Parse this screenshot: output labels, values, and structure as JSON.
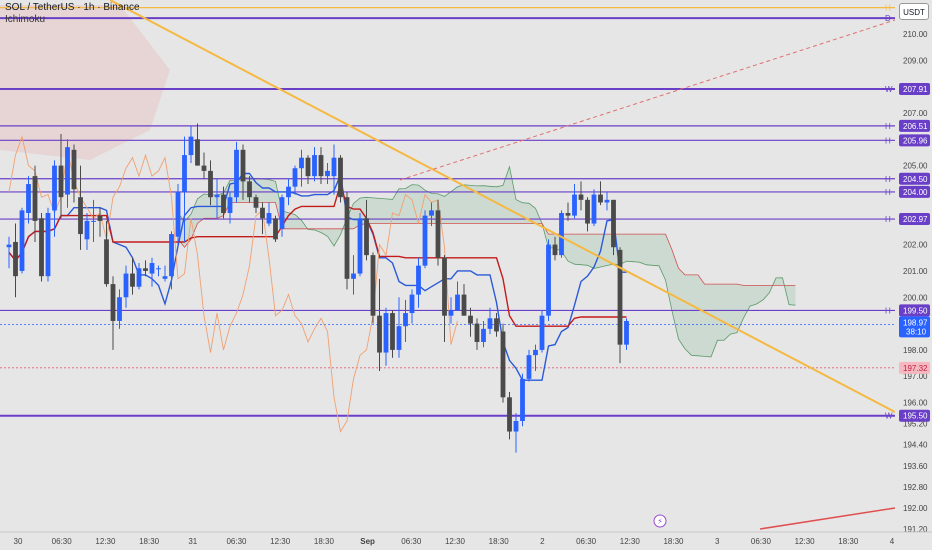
{
  "header": {
    "symbol_line": "SOL / TetherUS · 1h · Binance",
    "indicator_label": "Ichimoku",
    "currency_button": "USDT"
  },
  "colors": {
    "background": "#e6e6e6",
    "bull_candle": "#2962ff",
    "bear_candle": "#4a4a4a",
    "level_line": "#6a3fc8",
    "trendline": "#f5b942",
    "conversion_line": "#2a5ad8",
    "base_line": "#c41b1b",
    "lagging_line": "#f0a070",
    "cloud_bull": "#b8cfc0",
    "cloud_bear": "#e8c4c4",
    "current_price_tag": "#2962ff",
    "red_tag": "#f5b8c0"
  },
  "chart_data": {
    "type": "candlestick",
    "title": "SOL / TetherUS · 1h · Binance",
    "ylim": [
      190.85,
      211.1
    ],
    "x_ticks": [
      "30",
      "06:30",
      "12:30",
      "18:30",
      "31",
      "06:30",
      "12:30",
      "18:30",
      "Sep",
      "06:30",
      "12:30",
      "18:30",
      "2",
      "06:30",
      "12:30",
      "18:30",
      "3",
      "06:30",
      "12:30",
      "18:30",
      "4"
    ],
    "y_ticks": [
      "210.00",
      "209.00",
      "207.00",
      "205.00",
      "202.00",
      "201.00",
      "200.00",
      "198.00",
      "197.00",
      "196.00",
      "195.20",
      "194.40",
      "193.60",
      "192.80",
      "192.00",
      "191.20"
    ],
    "levels": [
      {
        "tag": "H",
        "value": 211.0,
        "color": "#f5b942"
      },
      {
        "tag": "D",
        "value": 210.6,
        "color": "#6a3fc8"
      },
      {
        "tag": "W",
        "value": 207.91,
        "label": "207.91",
        "color": "#6a3fc8"
      },
      {
        "tag": "H",
        "value": 206.51,
        "label": "206.51",
        "color": "#6a3fc8"
      },
      {
        "tag": "H",
        "value": 205.96,
        "label": "205.96",
        "color": "#6a3fc8"
      },
      {
        "tag": "H",
        "value": 204.5,
        "label": "204.50",
        "color": "#6a3fc8"
      },
      {
        "tag": "H",
        "value": 204.0,
        "label": "204.00",
        "color": "#6a3fc8"
      },
      {
        "tag": "H",
        "value": 202.97,
        "label": "202.97",
        "color": "#6a3fc8"
      },
      {
        "tag": "H",
        "value": 199.5,
        "label": "199.50",
        "color": "#6a3fc8"
      },
      {
        "tag": "W",
        "value": 195.5,
        "label": "195.50",
        "color": "#6a3fc8"
      }
    ],
    "current_price": {
      "value": 198.97,
      "label": "198.97",
      "countdown": "38:10"
    },
    "dotted_level": {
      "value": 197.32,
      "label": "197.32"
    },
    "candles": [
      [
        201.9,
        202.3,
        201.1,
        202.0
      ],
      [
        202.1,
        202.8,
        200.0,
        200.8
      ],
      [
        201.0,
        203.4,
        200.9,
        203.3
      ],
      [
        203.2,
        204.6,
        202.8,
        204.3
      ],
      [
        204.6,
        205.0,
        202.1,
        202.9
      ],
      [
        203.0,
        203.2,
        200.6,
        200.8
      ],
      [
        200.8,
        203.4,
        200.6,
        203.2
      ],
      [
        203.3,
        205.2,
        202.3,
        205.0
      ],
      [
        205.0,
        206.2,
        203.0,
        203.8
      ],
      [
        203.9,
        206.0,
        203.4,
        205.7
      ],
      [
        205.6,
        205.8,
        203.6,
        204.1
      ],
      [
        203.8,
        205.0,
        201.8,
        202.4
      ],
      [
        202.2,
        203.2,
        201.8,
        202.9
      ],
      [
        202.9,
        203.7,
        202.1,
        202.9
      ],
      [
        203.1,
        203.4,
        202.3,
        202.9
      ],
      [
        202.2,
        202.9,
        200.4,
        200.5
      ],
      [
        200.5,
        200.8,
        198.0,
        199.1
      ],
      [
        199.1,
        200.3,
        198.8,
        200.0
      ],
      [
        200.0,
        201.2,
        199.6,
        200.9
      ],
      [
        200.9,
        201.5,
        200.1,
        200.4
      ],
      [
        200.4,
        201.3,
        200.3,
        201.1
      ],
      [
        201.1,
        201.4,
        200.8,
        201.0
      ],
      [
        200.9,
        201.5,
        200.4,
        201.3
      ],
      [
        201.1,
        201.2,
        200.8,
        201.1
      ],
      [
        200.7,
        201.2,
        200.6,
        200.8
      ],
      [
        200.8,
        202.5,
        200.3,
        202.4
      ],
      [
        202.3,
        204.3,
        202.0,
        204.0
      ],
      [
        204.0,
        206.1,
        202.1,
        205.4
      ],
      [
        205.4,
        206.5,
        205.1,
        206.1
      ],
      [
        206.0,
        206.6,
        205.0,
        205.0
      ],
      [
        205.0,
        205.5,
        204.5,
        204.8
      ],
      [
        204.8,
        205.2,
        203.5,
        203.8
      ],
      [
        203.8,
        204.5,
        203.0,
        203.9
      ],
      [
        203.9,
        204.2,
        203.0,
        203.2
      ],
      [
        203.2,
        204.0,
        202.8,
        203.8
      ],
      [
        203.8,
        205.9,
        203.6,
        205.6
      ],
      [
        205.6,
        205.8,
        203.7,
        204.4
      ],
      [
        204.4,
        204.6,
        203.6,
        203.8
      ],
      [
        203.8,
        203.9,
        203.2,
        203.4
      ],
      [
        203.4,
        203.6,
        202.4,
        203.0
      ],
      [
        202.8,
        203.6,
        202.7,
        203.2
      ],
      [
        203.0,
        203.1,
        202.1,
        202.2
      ],
      [
        202.6,
        203.9,
        202.3,
        203.8
      ],
      [
        203.8,
        204.5,
        203.5,
        204.2
      ],
      [
        204.2,
        205.0,
        203.9,
        204.9
      ],
      [
        204.9,
        205.6,
        204.2,
        205.3
      ],
      [
        205.3,
        205.4,
        204.3,
        204.6
      ],
      [
        204.6,
        205.7,
        204.4,
        205.4
      ],
      [
        205.4,
        205.7,
        204.3,
        204.6
      ],
      [
        204.6,
        205.1,
        204.3,
        204.8
      ],
      [
        204.6,
        205.8,
        203.9,
        205.3
      ],
      [
        205.3,
        205.4,
        203.6,
        203.8
      ],
      [
        203.8,
        204.0,
        200.3,
        200.7
      ],
      [
        200.7,
        201.6,
        200.1,
        200.9
      ],
      [
        200.9,
        203.2,
        200.8,
        203.0
      ],
      [
        203.0,
        203.7,
        201.4,
        201.6
      ],
      [
        201.6,
        201.7,
        199.0,
        199.3
      ],
      [
        199.3,
        200.7,
        197.2,
        197.9
      ],
      [
        197.9,
        199.6,
        197.4,
        199.4
      ],
      [
        199.4,
        199.5,
        197.7,
        198.0
      ],
      [
        198.0,
        200.0,
        197.7,
        198.9
      ],
      [
        198.9,
        199.9,
        198.3,
        199.4
      ],
      [
        199.4,
        200.3,
        199.0,
        200.1
      ],
      [
        200.1,
        201.5,
        199.6,
        201.2
      ],
      [
        201.2,
        203.3,
        201.1,
        203.1
      ],
      [
        203.1,
        203.6,
        202.7,
        203.3
      ],
      [
        203.3,
        203.7,
        201.2,
        201.5
      ],
      [
        201.5,
        201.6,
        198.3,
        199.3
      ],
      [
        199.3,
        200.0,
        199.0,
        199.5
      ],
      [
        199.5,
        200.6,
        199.5,
        200.1
      ],
      [
        200.1,
        200.5,
        199.3,
        199.3
      ],
      [
        199.3,
        199.6,
        198.5,
        199.0
      ],
      [
        199.0,
        199.2,
        198.0,
        198.3
      ],
      [
        198.3,
        199.1,
        198.1,
        198.8
      ],
      [
        198.8,
        199.6,
        198.6,
        199.2
      ],
      [
        199.2,
        199.4,
        198.5,
        198.7
      ],
      [
        198.7,
        199.0,
        196.0,
        196.2
      ],
      [
        196.2,
        196.4,
        194.6,
        194.9
      ],
      [
        194.9,
        195.6,
        194.1,
        195.3
      ],
      [
        195.3,
        197.1,
        195.1,
        196.9
      ],
      [
        196.9,
        198.0,
        196.8,
        197.8
      ],
      [
        197.8,
        198.2,
        197.2,
        198.0
      ],
      [
        198.0,
        199.5,
        197.9,
        199.3
      ],
      [
        199.3,
        202.2,
        199.1,
        202.0
      ],
      [
        202.0,
        202.3,
        201.4,
        201.6
      ],
      [
        201.6,
        203.3,
        201.5,
        203.2
      ],
      [
        203.2,
        203.6,
        202.9,
        203.1
      ],
      [
        203.1,
        204.3,
        203.0,
        203.9
      ],
      [
        203.9,
        204.4,
        203.3,
        203.7
      ],
      [
        203.7,
        203.8,
        202.5,
        202.8
      ],
      [
        202.8,
        204.1,
        202.7,
        203.9
      ],
      [
        203.9,
        204.4,
        203.5,
        203.6
      ],
      [
        203.6,
        204.0,
        203.3,
        203.7
      ],
      [
        203.7,
        203.7,
        201.6,
        201.9
      ],
      [
        201.8,
        201.9,
        197.5,
        198.2
      ],
      [
        198.2,
        199.2,
        198.0,
        199.1
      ]
    ]
  }
}
